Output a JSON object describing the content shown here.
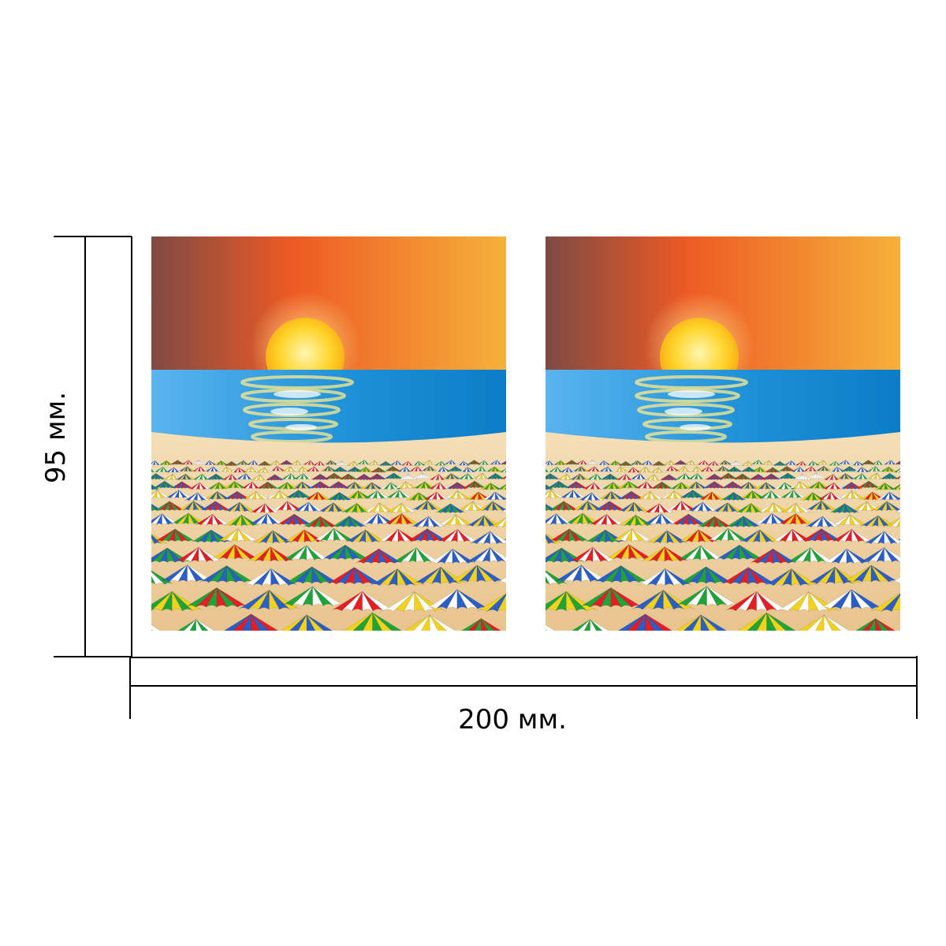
{
  "dimensions": {
    "height_label": "95 мм.",
    "width_label": "200 мм."
  },
  "panels": {
    "count": 2,
    "scene": {
      "sky_colors": [
        "#7f4a44",
        "#ee5a24",
        "#f5b13a"
      ],
      "sun_color": "#ffd42a",
      "sea_colors": [
        "#5ab4ee",
        "#1a8fd6",
        "#0d7cc8"
      ],
      "sand_color": "#f1d7a8",
      "umbrella_colors": [
        "#2a5fc9",
        "#1fa43a",
        "#e51e25",
        "#f2d21b",
        "#ffffff"
      ]
    }
  }
}
